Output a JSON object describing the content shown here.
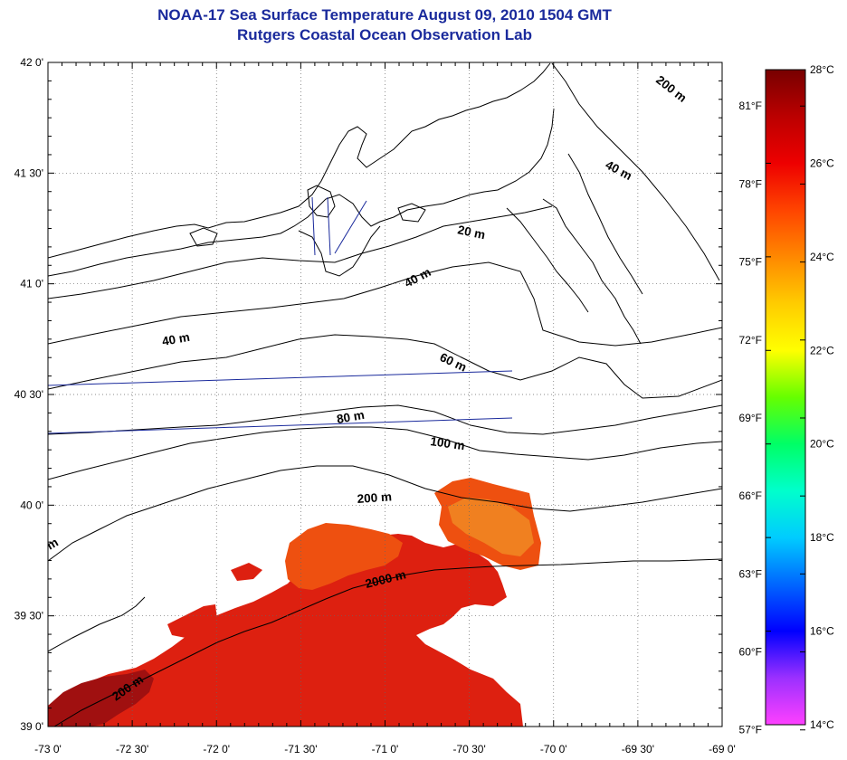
{
  "title": "NOAA-17 Sea Surface Temperature August 09, 2010 1504 GMT",
  "subtitle": "Rutgers Coastal Ocean Observation Lab",
  "axes": {
    "lon_labels": [
      "-73 0'",
      "-72 30'",
      "-72 0'",
      "-71 30'",
      "-71 0'",
      "-70 30'",
      "-70 0'",
      "-69 30'",
      "-69 0'"
    ],
    "lat_labels": [
      "39 0'",
      "39 30'",
      "40 0'",
      "40 30'",
      "41 0'",
      "41 30'",
      "42 0'"
    ]
  },
  "colorbar": {
    "celsius_labels": [
      "28°C",
      "26°C",
      "24°C",
      "22°C",
      "20°C",
      "18°C",
      "16°C",
      "14°C"
    ],
    "fahrenheit_labels": [
      "81°F",
      "78°F",
      "75°F",
      "72°F",
      "69°F",
      "66°F",
      "63°F",
      "60°F",
      "57°F"
    ],
    "range_c": [
      14,
      28
    ],
    "colors": [
      "#ff40ff",
      "#9b30ff",
      "#0000ff",
      "#0066ff",
      "#00ccff",
      "#00ffcc",
      "#00ff66",
      "#66ff00",
      "#ffff00",
      "#ffcc00",
      "#ff8800",
      "#ff4400",
      "#ee0000",
      "#bb0000",
      "#770000"
    ]
  },
  "contour_labels": [
    "200 m",
    "40 m",
    "20 m",
    "40 m",
    "40 m",
    "60 m",
    "80 m",
    "100 m",
    "200 m",
    "2000 m",
    "200 m",
    "m"
  ],
  "sst_colors": {
    "warm_dark": "#a01010",
    "warm_red": "#dd2010",
    "warm_orange": "#ee5010",
    "warm_amber": "#f08020"
  },
  "line_colors": {
    "coast": "#000000",
    "contour": "#000000",
    "transect": "#1a2a9c"
  }
}
